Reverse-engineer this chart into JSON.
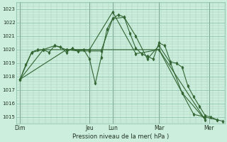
{
  "background_color": "#cceedd",
  "grid_color_major": "#88bbaa",
  "grid_color_minor": "#aaccbb",
  "line_color": "#336633",
  "vline_color": "#556655",
  "xlabel_text": "Pression niveau de la mer( hPa )",
  "ylim": [
    1014.5,
    1023.5
  ],
  "xlim": [
    0,
    108
  ],
  "yticks": [
    1015,
    1016,
    1017,
    1018,
    1019,
    1020,
    1021,
    1022,
    1023
  ],
  "day_labels": [
    "Dim",
    "Jeu",
    "Lun",
    "Mar",
    "Mer"
  ],
  "day_positions": [
    2,
    38,
    50,
    74,
    100
  ],
  "vline_positions": [
    2,
    38,
    50,
    74,
    100
  ],
  "series": [
    {
      "x": [
        2,
        5,
        8,
        11,
        14,
        17,
        20,
        23,
        26,
        29,
        32,
        35,
        38,
        41,
        44,
        47,
        50,
        53,
        56,
        59,
        62,
        65,
        68,
        71,
        74,
        77,
        80,
        83,
        86,
        89,
        92,
        95,
        98,
        101,
        104,
        107
      ],
      "y": [
        1017.8,
        1018.9,
        1019.8,
        1020.0,
        1020.0,
        1019.8,
        1020.3,
        1020.2,
        1019.8,
        1020.1,
        1019.9,
        1020.0,
        1019.3,
        1017.5,
        1019.4,
        1021.5,
        1022.3,
        1022.6,
        1022.4,
        1021.2,
        1020.1,
        1019.7,
        1019.5,
        1019.3,
        1020.5,
        1020.3,
        1019.1,
        1019.0,
        1018.7,
        1017.3,
        1016.5,
        1015.8,
        1015.1,
        1015.0,
        1014.8,
        1014.7
      ]
    },
    {
      "x": [
        2,
        8,
        14,
        20,
        26,
        32,
        38,
        44,
        50,
        56,
        62,
        68,
        74,
        80,
        86,
        92,
        98,
        104
      ],
      "y": [
        1017.8,
        1019.8,
        1020.0,
        1020.3,
        1020.0,
        1019.9,
        1019.9,
        1019.9,
        1022.3,
        1022.4,
        1021.0,
        1019.3,
        1020.3,
        1019.0,
        1016.8,
        1015.2,
        1015.0,
        1014.8
      ]
    },
    {
      "x": [
        2,
        14,
        26,
        38,
        50,
        62,
        74,
        86,
        98
      ],
      "y": [
        1017.8,
        1020.0,
        1020.0,
        1020.0,
        1022.8,
        1019.7,
        1020.0,
        1016.8,
        1014.8
      ]
    },
    {
      "x": [
        2,
        26,
        50,
        74,
        98
      ],
      "y": [
        1017.8,
        1020.0,
        1020.0,
        1020.0,
        1014.8
      ]
    }
  ]
}
